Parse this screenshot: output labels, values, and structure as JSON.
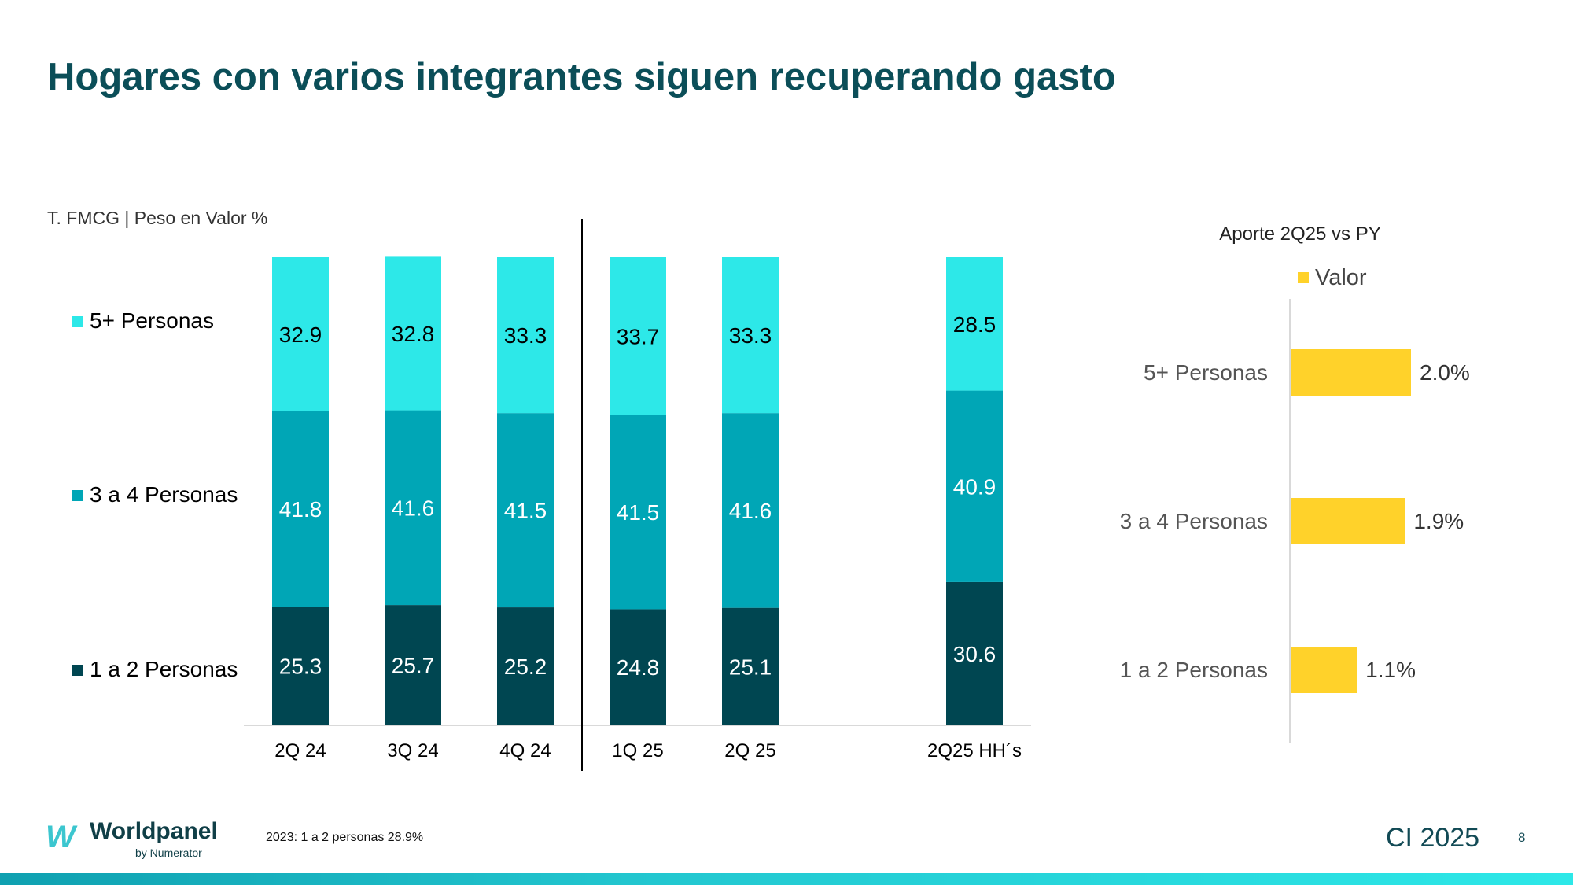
{
  "title": "Hogares con varios integrantes siguen recuperando gasto",
  "note": "2023:  1 a 2 personas  28.9%",
  "footer": {
    "logo_name": "Worldpanel",
    "logo_by": "by Numerator",
    "event": "CI 2025",
    "page_number": "8"
  },
  "colors": {
    "five_plus": "#2de8e8",
    "three_four": "#00a6b6",
    "one_two": "#004651",
    "valor": "#ffd22a",
    "title": "#0b4e58"
  },
  "chart_data": [
    {
      "type": "bar",
      "stacked": true,
      "subtitle": "T. FMCG | Peso en Valor %",
      "categories": [
        "2Q 24",
        "3Q 24",
        "4Q 24",
        "1Q 25",
        "2Q 25",
        "2Q25 HH´s"
      ],
      "series": [
        {
          "name": "1 a 2 Personas",
          "values": [
            25.3,
            25.7,
            25.2,
            24.8,
            25.1,
            30.6
          ],
          "color": "#004651"
        },
        {
          "name": "3 a 4 Personas",
          "values": [
            41.8,
            41.6,
            41.5,
            41.5,
            41.6,
            40.9
          ],
          "color": "#00a6b6"
        },
        {
          "name": "5+ Personas",
          "values": [
            32.9,
            32.8,
            33.3,
            33.7,
            33.3,
            28.5
          ],
          "color": "#2de8e8"
        }
      ],
      "ylim": [
        0,
        100
      ],
      "legend": "left",
      "grid": false
    },
    {
      "type": "bar",
      "orientation": "horizontal",
      "title": "Aporte 2Q25 vs PY",
      "categories": [
        "5+ Personas",
        "3 a 4 Personas",
        "1 a 2 Personas"
      ],
      "series": [
        {
          "name": "Valor",
          "values": [
            2.0,
            1.9,
            1.1
          ],
          "labels": [
            "2.0%",
            "1.9%",
            "1.1%"
          ],
          "color": "#ffd22a"
        }
      ],
      "legend": "top",
      "grid": false
    }
  ]
}
